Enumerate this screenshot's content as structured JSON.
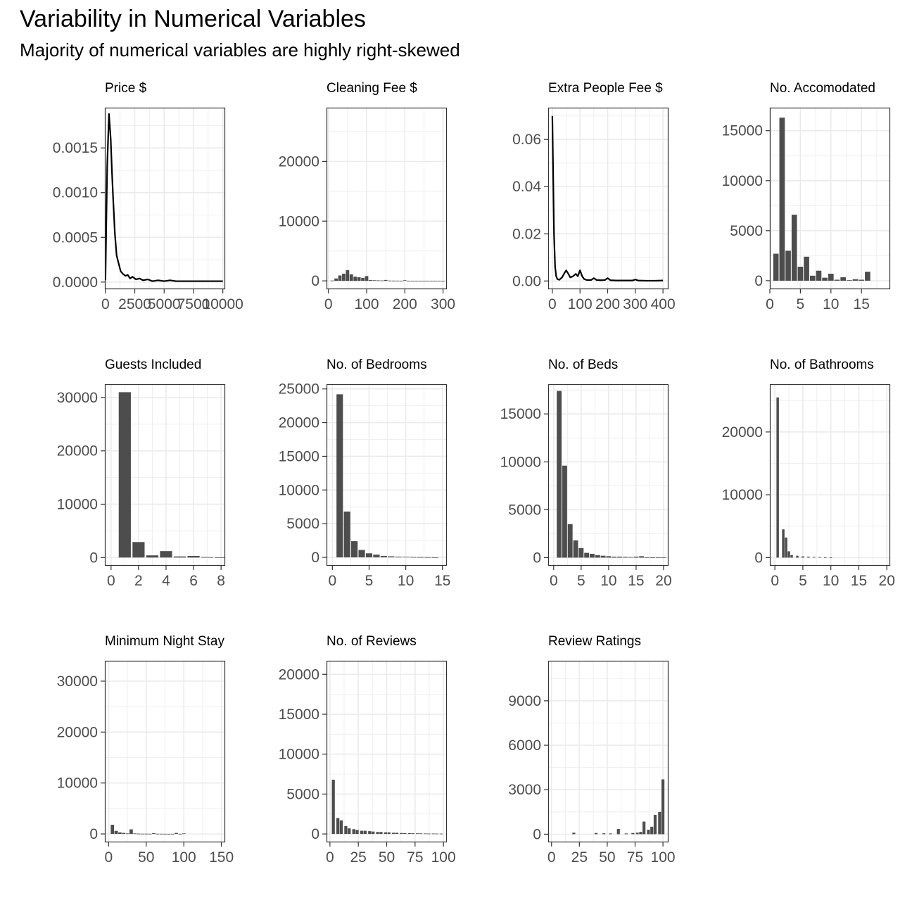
{
  "header": {
    "title": "Variability in Numerical Variables",
    "subtitle": "Majority of numerical variables are highly right-skewed"
  },
  "colors": {
    "bar": "#4d4d4d",
    "line": "#000000",
    "grid": "#ebebeb",
    "axis_text": "#4d4d4d",
    "border": "#333333"
  },
  "chart_data": [
    {
      "type": "line",
      "title": "Price $",
      "xlim": [
        -50,
        10200
      ],
      "ylim": [
        -8e-05,
        0.00195
      ],
      "x_ticks": [
        0,
        2500,
        5000,
        7500,
        10000
      ],
      "x_tick_labels": [
        "0",
        "2500",
        "5000",
        "7500",
        "10000"
      ],
      "y_ticks": [
        0.0,
        0.0005,
        0.001,
        0.0015
      ],
      "y_tick_labels": [
        "0.0000",
        "0.0005",
        "0.0010",
        "0.0015"
      ],
      "x": [
        0,
        150,
        300,
        450,
        550,
        650,
        800,
        950,
        1100,
        1300,
        1500,
        1700,
        1900,
        2100,
        2300,
        2600,
        2900,
        3200,
        3600,
        4000,
        4500,
        5000,
        5500,
        6000,
        7000,
        8000,
        9000,
        10000
      ],
      "y": [
        2e-05,
        0.0013,
        0.00188,
        0.0016,
        0.00125,
        0.00095,
        0.00055,
        0.0003,
        0.00022,
        0.00012,
        9e-05,
        7e-05,
        8e-05,
        4e-05,
        6e-05,
        3e-05,
        4e-05,
        2e-05,
        3e-05,
        1e-05,
        2e-05,
        1e-05,
        2e-05,
        1e-05,
        1e-05,
        1e-05,
        1e-05,
        1e-05
      ]
    },
    {
      "type": "bar",
      "title": "Cleaning Fee $",
      "xlim": [
        -5,
        310
      ],
      "ylim": [
        -1400,
        29000
      ],
      "x_ticks": [
        0,
        100,
        200,
        300
      ],
      "x_tick_labels": [
        "0",
        "100",
        "200",
        "300"
      ],
      "y_ticks": [
        0,
        10000,
        20000
      ],
      "y_tick_labels": [
        "0",
        "10000",
        "20000"
      ],
      "x": [
        10,
        20,
        30,
        40,
        50,
        60,
        70,
        80,
        90,
        100,
        110,
        120,
        130,
        140,
        150,
        160,
        170,
        180,
        190,
        200,
        210,
        220,
        230,
        240,
        250,
        260,
        270,
        280,
        290,
        300
      ],
      "values": [
        50,
        400,
        900,
        1200,
        1800,
        1100,
        700,
        600,
        500,
        800,
        150,
        100,
        80,
        60,
        150,
        40,
        30,
        30,
        20,
        100,
        10,
        10,
        10,
        10,
        10,
        5,
        5,
        5,
        5,
        5
      ]
    },
    {
      "type": "line",
      "title": "Extra People Fee $",
      "xlim": [
        -15,
        420
      ],
      "ylim": [
        -0.0035,
        0.0735
      ],
      "x_ticks": [
        0,
        100,
        200,
        300,
        400
      ],
      "x_tick_labels": [
        "0",
        "100",
        "200",
        "300",
        "400"
      ],
      "y_ticks": [
        0.0,
        0.02,
        0.04,
        0.06
      ],
      "y_tick_labels": [
        "0.00",
        "0.02",
        "0.04",
        "0.06"
      ],
      "x": [
        0,
        3,
        6,
        10,
        14,
        18,
        25,
        35,
        42,
        50,
        58,
        65,
        75,
        85,
        92,
        100,
        108,
        115,
        125,
        140,
        150,
        160,
        175,
        190,
        200,
        210,
        230,
        260,
        290,
        300,
        310,
        340,
        370,
        400
      ],
      "y": [
        0.07,
        0.045,
        0.02,
        0.006,
        0.002,
        0.0008,
        0.0005,
        0.0015,
        0.003,
        0.0045,
        0.003,
        0.0015,
        0.002,
        0.003,
        0.002,
        0.0045,
        0.002,
        0.0008,
        0.0004,
        0.0004,
        0.0012,
        0.0004,
        0.0003,
        0.0004,
        0.0012,
        0.0003,
        0.0002,
        0.0002,
        0.0002,
        0.0006,
        0.0002,
        0.0001,
        0.0001,
        0.0002
      ]
    },
    {
      "type": "bar",
      "title": "No. Accomodated",
      "xlim": [
        0,
        19.7
      ],
      "ylim": [
        -850,
        17300
      ],
      "x_ticks": [
        0,
        5,
        10,
        15
      ],
      "x_tick_labels": [
        "0",
        "5",
        "10",
        "15"
      ],
      "y_ticks": [
        0,
        5000,
        10000,
        15000
      ],
      "y_tick_labels": [
        "0",
        "5000",
        "10000",
        "15000"
      ],
      "x": [
        1,
        2,
        3,
        4,
        5,
        6,
        7,
        8,
        9,
        10,
        11,
        12,
        13,
        14,
        15,
        16
      ],
      "values": [
        2700,
        16300,
        3000,
        6600,
        1400,
        2400,
        500,
        1000,
        300,
        700,
        100,
        350,
        50,
        150,
        100,
        900
      ]
    },
    {
      "type": "bar",
      "title": "Guests Included",
      "xlim": [
        -0.45,
        8.3
      ],
      "ylim": [
        -1550,
        32500
      ],
      "x_ticks": [
        0,
        2,
        4,
        6,
        8
      ],
      "x_tick_labels": [
        "0",
        "2",
        "4",
        "6",
        "8"
      ],
      "y_ticks": [
        0,
        10000,
        20000,
        30000
      ],
      "y_tick_labels": [
        "0",
        "10000",
        "20000",
        "30000"
      ],
      "x": [
        1,
        2,
        3,
        4,
        5,
        6,
        7,
        8
      ],
      "values": [
        31000,
        2900,
        400,
        1200,
        200,
        300,
        80,
        50
      ]
    },
    {
      "type": "bar",
      "title": "No. of Bedrooms",
      "xlim": [
        -0.8,
        15.6
      ],
      "ylim": [
        -1250,
        25700
      ],
      "x_ticks": [
        0,
        5,
        10,
        15
      ],
      "x_tick_labels": [
        "0",
        "5",
        "10",
        "15"
      ],
      "y_ticks": [
        0,
        5000,
        10000,
        15000,
        20000,
        25000
      ],
      "y_tick_labels": [
        "0",
        "5000",
        "10000",
        "15000",
        "20000",
        "25000"
      ],
      "x": [
        1,
        2,
        3,
        4,
        5,
        6,
        7,
        8,
        9,
        10,
        11,
        12,
        13,
        14
      ],
      "values": [
        24200,
        6800,
        2400,
        1100,
        600,
        400,
        200,
        150,
        100,
        80,
        50,
        40,
        30,
        20
      ]
    },
    {
      "type": "bar",
      "title": "No. of Beds",
      "xlim": [
        -1,
        20.9
      ],
      "ylim": [
        -850,
        18100
      ],
      "x_ticks": [
        0,
        5,
        10,
        15,
        20
      ],
      "x_tick_labels": [
        "0",
        "5",
        "10",
        "15",
        "20"
      ],
      "y_ticks": [
        0,
        5000,
        10000,
        15000
      ],
      "y_tick_labels": [
        "0",
        "5000",
        "10000",
        "15000"
      ],
      "x": [
        1,
        2,
        3,
        4,
        5,
        6,
        7,
        8,
        9,
        10,
        11,
        12,
        13,
        14,
        15,
        16,
        17,
        18,
        19,
        20
      ],
      "values": [
        17400,
        9600,
        3500,
        1800,
        1000,
        500,
        400,
        250,
        200,
        150,
        100,
        100,
        80,
        60,
        100,
        150,
        40,
        30,
        20,
        20
      ]
    },
    {
      "type": "bar",
      "title": "No. of Bathrooms",
      "xlim": [
        -0.9,
        20.6
      ],
      "ylim": [
        -1300,
        27600
      ],
      "x_ticks": [
        0,
        5,
        10,
        15,
        20
      ],
      "x_tick_labels": [
        "0",
        "5",
        "10",
        "15",
        "20"
      ],
      "y_ticks": [
        0,
        10000,
        20000
      ],
      "y_tick_labels": [
        "0",
        "10000",
        "20000"
      ],
      "x": [
        0.5,
        1.5,
        2,
        2.5,
        3,
        4,
        5,
        6,
        7,
        8,
        9,
        10
      ],
      "values": [
        25500,
        4500,
        3200,
        1000,
        400,
        300,
        200,
        150,
        100,
        80,
        50,
        30
      ]
    },
    {
      "type": "bar",
      "title": "Minimum Night Stay",
      "xlim": [
        -5,
        155
      ],
      "ylim": [
        -1650,
        34000
      ],
      "x_ticks": [
        0,
        50,
        100,
        150
      ],
      "x_tick_labels": [
        "0",
        "50",
        "100",
        "150"
      ],
      "y_ticks": [
        0,
        10000,
        20000,
        30000
      ],
      "y_tick_labels": [
        "0",
        "10000",
        "20000",
        "30000"
      ],
      "x": [
        5,
        10,
        15,
        20,
        25,
        30,
        35,
        40,
        45,
        50,
        55,
        60,
        65,
        70,
        75,
        80,
        85,
        90,
        95,
        100
      ],
      "values": [
        1800,
        600,
        300,
        200,
        100,
        900,
        100,
        50,
        40,
        40,
        30,
        150,
        30,
        30,
        20,
        20,
        20,
        200,
        20,
        100
      ]
    },
    {
      "type": "bar",
      "title": "No. of Reviews",
      "xlim": [
        -3,
        103
      ],
      "ylim": [
        -1050,
        21700
      ],
      "x_ticks": [
        0,
        25,
        50,
        75,
        100
      ],
      "x_tick_labels": [
        "0",
        "25",
        "50",
        "75",
        "100"
      ],
      "y_ticks": [
        0,
        5000,
        10000,
        15000,
        20000
      ],
      "y_tick_labels": [
        "0",
        "5000",
        "10000",
        "15000",
        "20000"
      ],
      "x": [
        3,
        7,
        10,
        14,
        17,
        21,
        24,
        28,
        31,
        35,
        38,
        42,
        45,
        49,
        52,
        56,
        59,
        63,
        66,
        70,
        73,
        77,
        80,
        84,
        87,
        91,
        94,
        98
      ],
      "values": [
        6800,
        2000,
        1700,
        1000,
        700,
        600,
        500,
        400,
        400,
        350,
        300,
        250,
        250,
        200,
        200,
        150,
        150,
        120,
        100,
        100,
        90,
        80,
        70,
        60,
        50,
        50,
        40,
        40
      ]
    },
    {
      "type": "bar",
      "title": "Review Ratings",
      "xlim": [
        -3,
        105
      ],
      "ylim": [
        -550,
        11700
      ],
      "x_ticks": [
        0,
        25,
        50,
        75,
        100
      ],
      "x_tick_labels": [
        "0",
        "25",
        "50",
        "75",
        "100"
      ],
      "y_ticks": [
        0,
        3000,
        6000,
        9000
      ],
      "y_tick_labels": [
        "0",
        "3000",
        "6000",
        "9000"
      ],
      "x": [
        20,
        40,
        47,
        53,
        60,
        67,
        73,
        77,
        80,
        83,
        87,
        90,
        93,
        97,
        100
      ],
      "values": [
        100,
        80,
        60,
        50,
        350,
        50,
        80,
        100,
        150,
        850,
        300,
        500,
        1300,
        1500,
        3700
      ]
    }
  ]
}
